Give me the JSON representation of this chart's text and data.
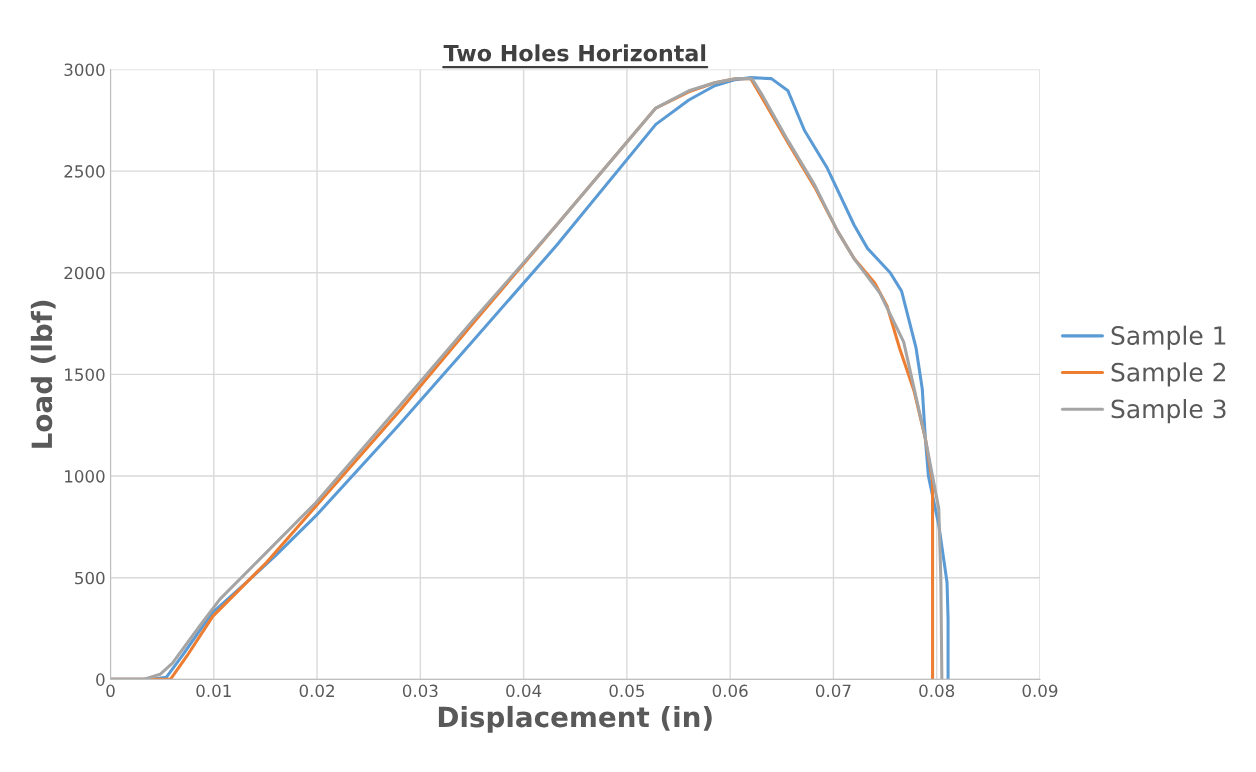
{
  "chart_data": {
    "type": "line",
    "title": "Two Holes Horizontal",
    "xlabel": "Displacement (in)",
    "ylabel": "Load (lbf)",
    "xlim": [
      0,
      0.09
    ],
    "xticks": [
      0,
      0.01,
      0.02,
      0.03,
      0.04,
      0.05,
      0.06,
      0.07,
      0.08,
      0.09
    ],
    "ylim": [
      0,
      3000
    ],
    "yticks": [
      0,
      500,
      1000,
      1500,
      2000,
      2500,
      3000
    ],
    "grid": true,
    "legend": "right",
    "marker": "none",
    "line_style": "solid",
    "series": [
      {
        "name": "Sample 1",
        "color": "#5b9bd5",
        "x": [
          0,
          0.004,
          0.0054,
          0.007,
          0.0085,
          0.0099,
          0.013,
          0.016,
          0.0199,
          0.0279,
          0.035,
          0.0432,
          0.0528,
          0.056,
          0.0585,
          0.0605,
          0.062,
          0.064,
          0.0656,
          0.0672,
          0.0694,
          0.072,
          0.0733,
          0.0755,
          0.0766,
          0.078,
          0.0786,
          0.0789,
          0.0792,
          0.0802,
          0.081,
          0.0811,
          0.0811
        ],
        "values": [
          0,
          0,
          10,
          120,
          230,
          330,
          470,
          610,
          805,
          1250,
          1660,
          2135,
          2730,
          2850,
          2920,
          2950,
          2960,
          2955,
          2895,
          2700,
          2515,
          2235,
          2120,
          2000,
          1910,
          1630,
          1430,
          1185,
          1000,
          760,
          478,
          300,
          0
        ]
      },
      {
        "name": "Sample 2",
        "color": "#ed7d31",
        "x": [
          0,
          0.004,
          0.0058,
          0.0074,
          0.0099,
          0.0151,
          0.0279,
          0.035,
          0.0432,
          0.0528,
          0.056,
          0.0585,
          0.0605,
          0.062,
          0.0631,
          0.0656,
          0.0682,
          0.0704,
          0.072,
          0.074,
          0.0752,
          0.0764,
          0.0778,
          0.0789,
          0.0796,
          0.0796,
          0.0796
        ],
        "values": [
          0,
          0,
          0,
          115,
          310,
          575,
          1315,
          1745,
          2235,
          2810,
          2890,
          2935,
          2955,
          2955,
          2860,
          2640,
          2420,
          2205,
          2070,
          1950,
          1835,
          1630,
          1420,
          1185,
          970,
          500,
          0
        ]
      },
      {
        "name": "Sample 3",
        "color": "#a5a5a5",
        "x": [
          0,
          0.0032,
          0.0048,
          0.006,
          0.0086,
          0.0106,
          0.0151,
          0.0199,
          0.0279,
          0.035,
          0.0432,
          0.0528,
          0.056,
          0.0585,
          0.0605,
          0.0621,
          0.0631,
          0.0656,
          0.0682,
          0.0704,
          0.072,
          0.0745,
          0.0768,
          0.0789,
          0.0802,
          0.0804,
          0.0805
        ],
        "values": [
          0,
          0,
          25,
          80,
          260,
          395,
          625,
          870,
          1340,
          1760,
          2235,
          2810,
          2895,
          2935,
          2955,
          2955,
          2875,
          2650,
          2430,
          2205,
          2070,
          1900,
          1660,
          1185,
          840,
          500,
          0
        ]
      }
    ]
  }
}
